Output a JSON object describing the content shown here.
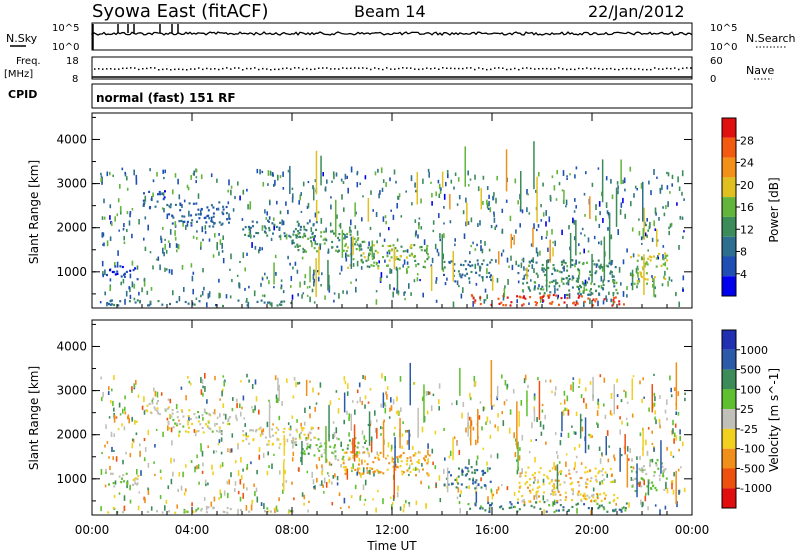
{
  "header": {
    "title": "Syowa East (fitACF)",
    "beam": "Beam 14",
    "date": "22/Jan/2012"
  },
  "top_panels": {
    "nsky_label": "N.Sky",
    "nsky_ticks": [
      "10^5",
      "10^0"
    ],
    "nsearch_label": "N.Search",
    "nsearch_ticks": [
      "10^5",
      "10^0"
    ],
    "freq_label": "Freq.",
    "freq_unit": "[MHz]",
    "freq_ticks": [
      "18",
      "8"
    ],
    "nave_label": "Nave",
    "nave_ticks": [
      "60",
      "0"
    ],
    "cpid_label": "CPID",
    "cpid_text": "normal (fast) 151 RF"
  },
  "colors": {
    "power_scale": [
      "#0000ee",
      "#1f4fb5",
      "#2e6f8f",
      "#3c8c5a",
      "#62b53a",
      "#e0c020",
      "#f39018",
      "#f25a10",
      "#e01010"
    ],
    "velocity_scale": [
      "#2030b0",
      "#2a5aa8",
      "#3c8c5a",
      "#5ec030",
      "#c0c0b8",
      "#f2d020",
      "#f0901a",
      "#ee5010",
      "#e00e0e"
    ]
  },
  "chart_data": [
    {
      "type": "heatmap",
      "name": "power",
      "ylabel": "Slant Range [km]",
      "yticks": [
        1000,
        2000,
        3000,
        4000
      ],
      "ylim": [
        180,
        4600
      ],
      "xlim": [
        0,
        24
      ],
      "colorbar": {
        "label": "Power [dB]",
        "ticks": [
          "28",
          "24",
          "20",
          "16",
          "12",
          "8",
          "4"
        ],
        "range": [
          0,
          32
        ]
      },
      "bands": [
        {
          "t0": 2.0,
          "t1": 3.2,
          "r0": 2450,
          "r1": 2850,
          "v": 6
        },
        {
          "t0": 3.0,
          "t1": 5.5,
          "r0": 2050,
          "r1": 2600,
          "v": 7
        },
        {
          "t0": 6.0,
          "t1": 9.0,
          "r0": 1800,
          "r1": 2200,
          "v": 10
        },
        {
          "t0": 8.0,
          "t1": 11.0,
          "r0": 1450,
          "r1": 1950,
          "v": 13
        },
        {
          "t0": 10.0,
          "t1": 13.5,
          "r0": 1100,
          "r1": 1650,
          "v": 16
        },
        {
          "t0": 0.5,
          "t1": 2.0,
          "r0": 850,
          "r1": 1150,
          "v": 5
        },
        {
          "t0": 15.0,
          "t1": 21.5,
          "r0": 260,
          "r1": 500,
          "v": 28
        },
        {
          "t0": 17.0,
          "t1": 21.0,
          "r0": 500,
          "r1": 1300,
          "v": 12
        },
        {
          "t0": 21.5,
          "t1": 23.0,
          "r0": 750,
          "r1": 1450,
          "v": 18
        },
        {
          "t0": 14.0,
          "t1": 16.0,
          "r0": 800,
          "r1": 1300,
          "v": 9
        },
        {
          "t0": 0.5,
          "t1": 8.0,
          "r0": 250,
          "r1": 380,
          "v": 10
        }
      ]
    },
    {
      "type": "heatmap",
      "name": "velocity",
      "xlabel": "Time UT",
      "ylabel": "Slant Range [km]",
      "yticks": [
        1000,
        2000,
        3000,
        4000
      ],
      "xticks": [
        "00:00",
        "04:00",
        "08:00",
        "12:00",
        "16:00",
        "20:00",
        "00:00"
      ],
      "ylim": [
        180,
        4600
      ],
      "xlim": [
        0,
        24
      ],
      "colorbar": {
        "label": "Velocity [m s^-1]",
        "ticks": [
          "1000",
          "500",
          "100",
          "25",
          "-25",
          "-100",
          "-500",
          "-1000"
        ],
        "range": [
          -1200,
          1200
        ]
      },
      "bands": [
        {
          "t0": 2.0,
          "t1": 3.2,
          "r0": 2450,
          "r1": 2850,
          "v": 0
        },
        {
          "t0": 3.0,
          "t1": 5.5,
          "r0": 2050,
          "r1": 2600,
          "v": 10
        },
        {
          "t0": 6.0,
          "t1": 9.0,
          "r0": 1800,
          "r1": 2200,
          "v": -150
        },
        {
          "t0": 8.0,
          "t1": 11.0,
          "r0": 1450,
          "r1": 1950,
          "v": 200
        },
        {
          "t0": 10.0,
          "t1": 13.5,
          "r0": 1100,
          "r1": 1650,
          "v": -400
        },
        {
          "t0": 0.5,
          "t1": 2.0,
          "r0": 850,
          "r1": 1150,
          "v": 0
        },
        {
          "t0": 15.0,
          "t1": 21.5,
          "r0": 260,
          "r1": 500,
          "v": 600
        },
        {
          "t0": 17.0,
          "t1": 21.0,
          "r0": 500,
          "r1": 1300,
          "v": -300
        },
        {
          "t0": 21.5,
          "t1": 23.0,
          "r0": 750,
          "r1": 1450,
          "v": 150
        },
        {
          "t0": 14.0,
          "t1": 16.0,
          "r0": 800,
          "r1": 1300,
          "v": 700
        },
        {
          "t0": 0.5,
          "t1": 8.0,
          "r0": 250,
          "r1": 380,
          "v": -10
        }
      ]
    }
  ]
}
